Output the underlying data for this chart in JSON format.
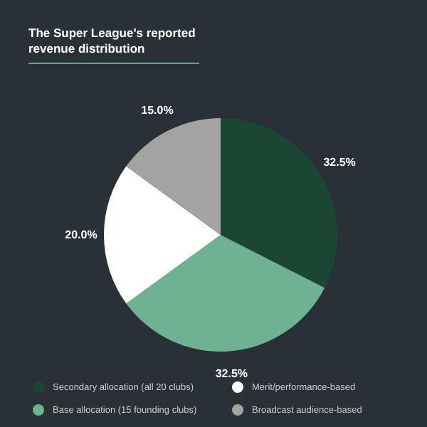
{
  "chart_data": {
    "type": "pie",
    "title": "The Super League’s reported revenue distribution",
    "categories": [
      "Secondary allocation (all 20 clubs)",
      "Base allocation (15 founding clubs)",
      "Merit/performance-based",
      "Broadcast audience-based"
    ],
    "values": [
      32.5,
      32.5,
      20.0,
      15.0
    ],
    "colors": [
      "#1c4634",
      "#6db393",
      "#ffffff",
      "#a3a3a3"
    ],
    "value_labels": [
      "32.5%",
      "32.5%",
      "20.0%",
      "15.0%"
    ],
    "legend": "bottom"
  }
}
